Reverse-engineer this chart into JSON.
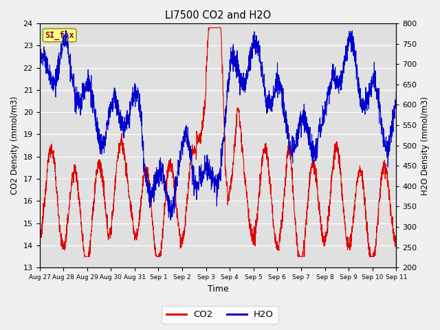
{
  "title": "LI7500 CO2 and H2O",
  "xlabel": "Time",
  "ylabel_left": "CO2 Density (mmol/m3)",
  "ylabel_right": "H2O Density (mmol/m3)",
  "co2_ylim": [
    13.0,
    24.0
  ],
  "h2o_ylim": [
    200,
    800
  ],
  "co2_yticks": [
    13.0,
    14.0,
    15.0,
    16.0,
    17.0,
    18.0,
    19.0,
    20.0,
    21.0,
    22.0,
    23.0,
    24.0
  ],
  "h2o_yticks": [
    200,
    250,
    300,
    350,
    400,
    450,
    500,
    550,
    600,
    650,
    700,
    750,
    800
  ],
  "co2_color": "#dd0000",
  "h2o_color": "#0000cc",
  "plot_bg_color": "#e0e0e0",
  "fig_bg_color": "#f0f0f0",
  "grid_color": "#ffffff",
  "legend_text_co2": "CO2",
  "legend_text_h2o": "H2O",
  "annotation_text": "SI_flx",
  "annotation_bg": "#ffff99",
  "annotation_border": "#999900",
  "xtick_labels": [
    "Aug 27",
    "Aug 28",
    "Aug 29",
    "Aug 30",
    "Aug 31",
    "Sep 1",
    "Sep 2",
    "Sep 3",
    "Sep 4",
    "Sep 5",
    "Sep 6",
    "Sep 7",
    "Sep 8",
    "Sep 9",
    "Sep 10",
    "Sep 11"
  ],
  "n_pts": 2160,
  "seed": 12345
}
